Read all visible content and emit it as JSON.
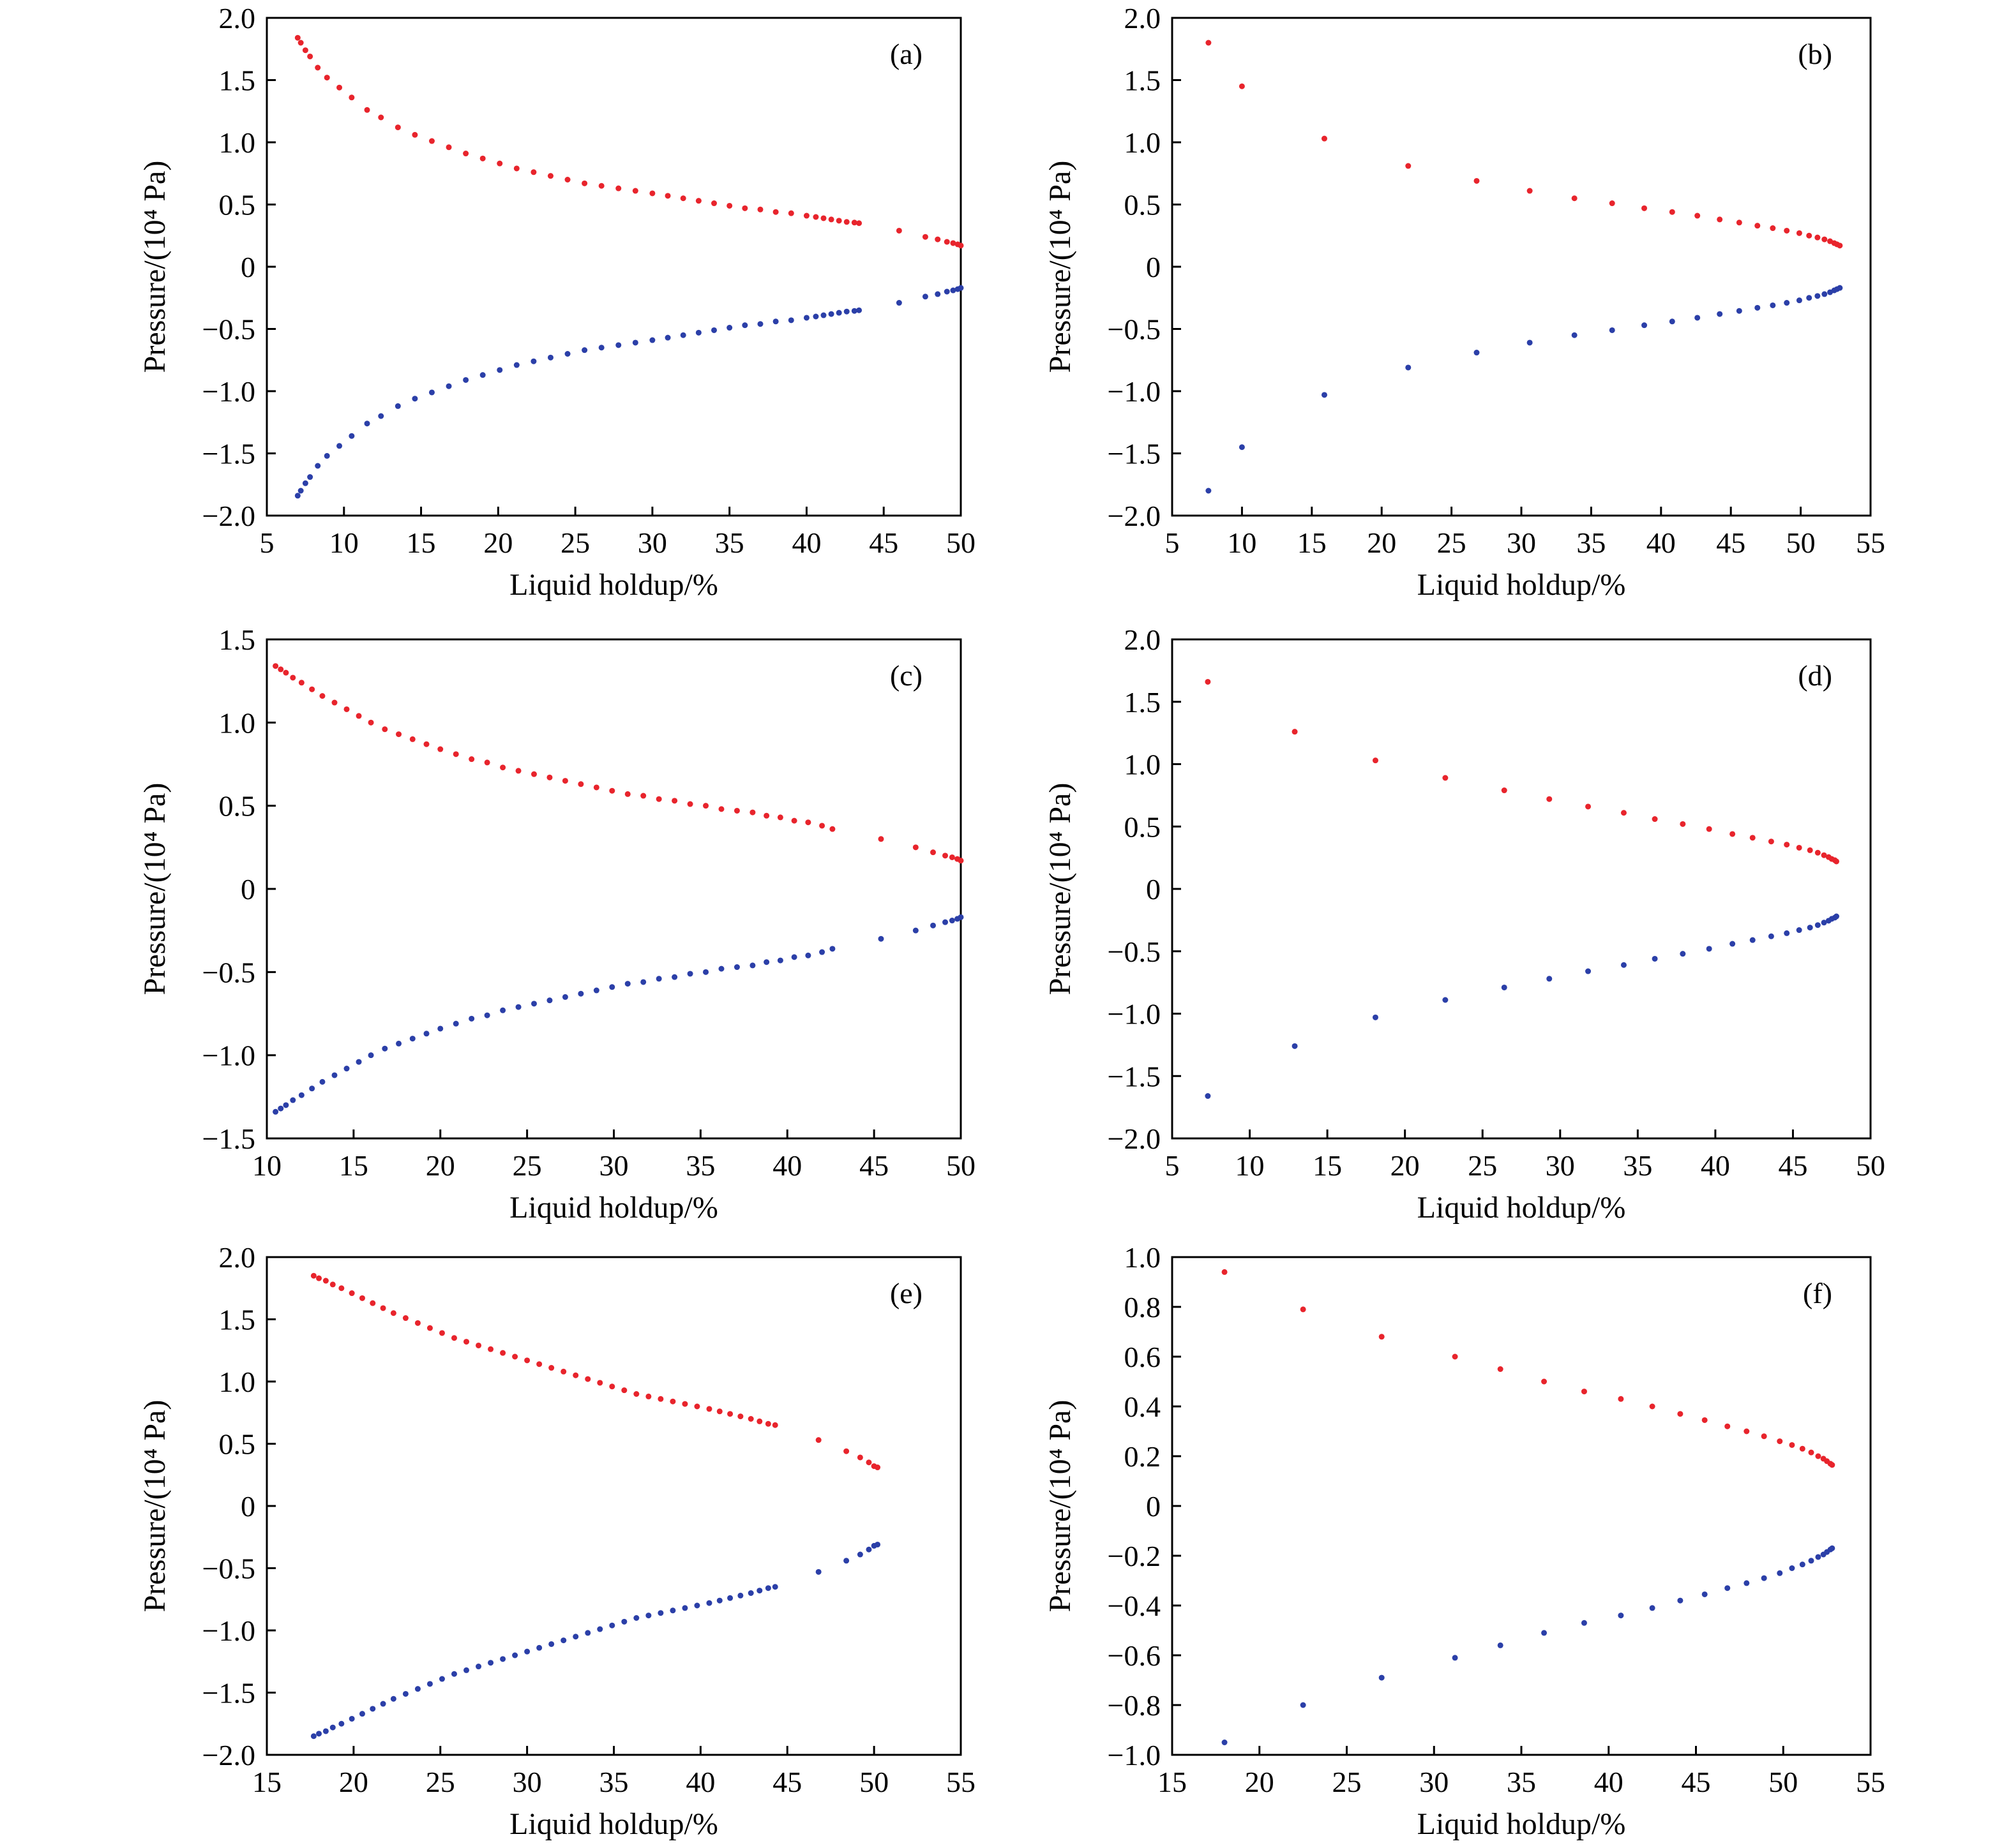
{
  "colors": {
    "upper_series": "#e8242c",
    "lower_series": "#2b3fa8"
  },
  "chart_data": [
    {
      "type": "scatter",
      "panel": "(a)",
      "xlabel": "Liquid holdup/%",
      "ylabel": "Pressure/(10⁴ Pa)",
      "xlim": [
        5,
        50
      ],
      "ylim": [
        -2.0,
        2.0
      ],
      "xticks": [
        "5",
        "10",
        "15",
        "20",
        "25",
        "30",
        "35",
        "40",
        "45",
        "50"
      ],
      "yticks": [
        "2.0",
        "1.5",
        "1.0",
        "0.5",
        "0",
        "−0.5",
        "−1.0",
        "−1.5",
        "−2.0"
      ],
      "x": [
        7.0,
        7.2,
        7.5,
        7.8,
        8.3,
        8.9,
        9.7,
        10.5,
        11.5,
        12.4,
        13.5,
        14.6,
        15.7,
        16.8,
        17.9,
        19.0,
        20.1,
        21.2,
        22.3,
        23.4,
        24.5,
        25.6,
        26.7,
        27.8,
        28.9,
        30.0,
        31.0,
        32.0,
        33.0,
        34.0,
        35.0,
        36.0,
        37.0,
        38.0,
        39.0,
        40.0,
        40.6,
        41.1,
        41.6,
        42.1,
        42.6,
        43.1,
        43.4,
        46.0,
        47.7,
        48.5,
        49.1,
        49.5,
        49.8,
        50.0
      ],
      "series": [
        {
          "values": [
            1.84,
            1.8,
            1.74,
            1.69,
            1.6,
            1.52,
            1.44,
            1.36,
            1.26,
            1.2,
            1.12,
            1.06,
            1.01,
            0.96,
            0.91,
            0.87,
            0.83,
            0.79,
            0.76,
            0.73,
            0.7,
            0.67,
            0.65,
            0.63,
            0.61,
            0.59,
            0.57,
            0.55,
            0.53,
            0.51,
            0.49,
            0.47,
            0.46,
            0.44,
            0.43,
            0.41,
            0.4,
            0.39,
            0.38,
            0.37,
            0.36,
            0.355,
            0.35,
            0.29,
            0.24,
            0.22,
            0.2,
            0.19,
            0.18,
            0.17
          ]
        },
        {
          "values": [
            -1.84,
            -1.8,
            -1.74,
            -1.69,
            -1.6,
            -1.52,
            -1.44,
            -1.36,
            -1.26,
            -1.2,
            -1.12,
            -1.06,
            -1.01,
            -0.96,
            -0.91,
            -0.87,
            -0.83,
            -0.79,
            -0.76,
            -0.73,
            -0.7,
            -0.67,
            -0.65,
            -0.63,
            -0.61,
            -0.59,
            -0.57,
            -0.55,
            -0.53,
            -0.51,
            -0.49,
            -0.47,
            -0.46,
            -0.44,
            -0.43,
            -0.41,
            -0.4,
            -0.39,
            -0.38,
            -0.37,
            -0.36,
            -0.355,
            -0.35,
            -0.29,
            -0.24,
            -0.22,
            -0.2,
            -0.19,
            -0.18,
            -0.17
          ]
        }
      ]
    },
    {
      "type": "scatter",
      "panel": "(b)",
      "xlabel": "Liquid holdup/%",
      "ylabel": "Pressure/(10⁴ Pa)",
      "xlim": [
        5,
        55
      ],
      "ylim": [
        -2.0,
        2.0
      ],
      "xticks": [
        "5",
        "10",
        "15",
        "20",
        "25",
        "30",
        "35",
        "40",
        "45",
        "50",
        "55"
      ],
      "yticks": [
        "2.0",
        "1.5",
        "1.0",
        "0.5",
        "0",
        "−0.5",
        "−1.0",
        "−1.5",
        "−2.0"
      ],
      "x": [
        7.6,
        10.0,
        15.9,
        21.9,
        26.8,
        30.6,
        33.8,
        36.5,
        38.8,
        40.8,
        42.6,
        44.2,
        45.6,
        46.9,
        48.0,
        49.0,
        49.9,
        50.6,
        51.2,
        51.7,
        52.1,
        52.4,
        52.6,
        52.8
      ],
      "series": [
        {
          "values": [
            1.8,
            1.45,
            1.03,
            0.81,
            0.69,
            0.61,
            0.55,
            0.51,
            0.47,
            0.44,
            0.41,
            0.38,
            0.355,
            0.33,
            0.31,
            0.29,
            0.27,
            0.25,
            0.235,
            0.22,
            0.205,
            0.19,
            0.18,
            0.17
          ]
        },
        {
          "values": [
            -1.8,
            -1.45,
            -1.03,
            -0.81,
            -0.69,
            -0.61,
            -0.55,
            -0.51,
            -0.47,
            -0.44,
            -0.41,
            -0.38,
            -0.355,
            -0.33,
            -0.31,
            -0.29,
            -0.27,
            -0.25,
            -0.235,
            -0.22,
            -0.205,
            -0.19,
            -0.18,
            -0.17
          ]
        }
      ]
    },
    {
      "type": "scatter",
      "panel": "(c)",
      "xlabel": "Liquid holdup/%",
      "ylabel": "Pressure/(10⁴ Pa)",
      "xlim": [
        10,
        50
      ],
      "ylim": [
        -1.5,
        1.5
      ],
      "xticks": [
        "10",
        "15",
        "20",
        "25",
        "30",
        "35",
        "40",
        "45",
        "50"
      ],
      "yticks": [
        "1.5",
        "1.0",
        "0.5",
        "0",
        "−0.5",
        "−1.0",
        "−1.5"
      ],
      "x": [
        10.5,
        10.8,
        11.1,
        11.5,
        12.0,
        12.6,
        13.2,
        13.9,
        14.6,
        15.3,
        16.0,
        16.8,
        17.6,
        18.4,
        19.2,
        20.0,
        20.9,
        21.8,
        22.7,
        23.6,
        24.5,
        25.4,
        26.3,
        27.2,
        28.1,
        29.0,
        29.9,
        30.8,
        31.7,
        32.6,
        33.5,
        34.4,
        35.3,
        36.2,
        37.1,
        38.0,
        38.8,
        39.6,
        40.4,
        41.2,
        42.0,
        42.6,
        45.4,
        47.4,
        48.4,
        49.1,
        49.5,
        49.8,
        50.0
      ],
      "series": [
        {
          "values": [
            1.34,
            1.32,
            1.3,
            1.27,
            1.24,
            1.2,
            1.16,
            1.12,
            1.08,
            1.04,
            1.0,
            0.96,
            0.93,
            0.9,
            0.87,
            0.84,
            0.81,
            0.78,
            0.76,
            0.73,
            0.71,
            0.69,
            0.67,
            0.65,
            0.63,
            0.61,
            0.59,
            0.57,
            0.56,
            0.54,
            0.53,
            0.51,
            0.5,
            0.48,
            0.47,
            0.46,
            0.44,
            0.43,
            0.41,
            0.4,
            0.38,
            0.36,
            0.3,
            0.25,
            0.22,
            0.2,
            0.19,
            0.18,
            0.17
          ]
        },
        {
          "values": [
            -1.34,
            -1.32,
            -1.3,
            -1.27,
            -1.24,
            -1.2,
            -1.16,
            -1.12,
            -1.08,
            -1.04,
            -1.0,
            -0.96,
            -0.93,
            -0.9,
            -0.87,
            -0.84,
            -0.81,
            -0.78,
            -0.76,
            -0.73,
            -0.71,
            -0.69,
            -0.67,
            -0.65,
            -0.63,
            -0.61,
            -0.59,
            -0.57,
            -0.56,
            -0.54,
            -0.53,
            -0.51,
            -0.5,
            -0.48,
            -0.47,
            -0.46,
            -0.44,
            -0.43,
            -0.41,
            -0.4,
            -0.38,
            -0.36,
            -0.3,
            -0.25,
            -0.22,
            -0.2,
            -0.19,
            -0.18,
            -0.17
          ]
        }
      ]
    },
    {
      "type": "scatter",
      "panel": "(d)",
      "xlabel": "Liquid holdup/%",
      "ylabel": "Pressure/(10⁴ Pa)",
      "xlim": [
        5,
        50
      ],
      "ylim": [
        -2.0,
        2.0
      ],
      "xticks": [
        "5",
        "10",
        "15",
        "20",
        "25",
        "30",
        "35",
        "40",
        "45",
        "50"
      ],
      "yticks": [
        "2.0",
        "1.5",
        "1.0",
        "0.5",
        "0",
        "−0.5",
        "−1.0",
        "−1.5",
        "−2.0"
      ],
      "x": [
        7.3,
        12.9,
        18.1,
        22.6,
        26.4,
        29.3,
        31.8,
        34.1,
        36.1,
        37.9,
        39.6,
        41.1,
        42.4,
        43.6,
        44.6,
        45.4,
        46.1,
        46.6,
        47.0,
        47.3,
        47.5,
        47.7,
        47.8
      ],
      "series": [
        {
          "values": [
            1.66,
            1.26,
            1.03,
            0.89,
            0.79,
            0.72,
            0.66,
            0.61,
            0.56,
            0.52,
            0.48,
            0.44,
            0.41,
            0.38,
            0.355,
            0.33,
            0.31,
            0.29,
            0.27,
            0.255,
            0.24,
            0.23,
            0.22
          ]
        },
        {
          "values": [
            -1.66,
            -1.26,
            -1.03,
            -0.89,
            -0.79,
            -0.72,
            -0.66,
            -0.61,
            -0.56,
            -0.52,
            -0.48,
            -0.44,
            -0.41,
            -0.38,
            -0.355,
            -0.33,
            -0.31,
            -0.29,
            -0.27,
            -0.255,
            -0.24,
            -0.23,
            -0.22
          ]
        }
      ]
    },
    {
      "type": "scatter",
      "panel": "(e)",
      "xlabel": "Liquid holdup/%",
      "ylabel": "Pressure/(10⁴ Pa)",
      "xlim": [
        15,
        55
      ],
      "ylim": [
        -2.0,
        2.0
      ],
      "xticks": [
        "15",
        "20",
        "25",
        "30",
        "35",
        "40",
        "45",
        "50",
        "55"
      ],
      "yticks": [
        "2.0",
        "1.5",
        "1.0",
        "0.5",
        "0",
        "−0.5",
        "−1.0",
        "−1.5",
        "−2.0"
      ],
      "x": [
        17.7,
        18.0,
        18.4,
        18.8,
        19.3,
        19.9,
        20.5,
        21.1,
        21.7,
        22.3,
        23.0,
        23.7,
        24.4,
        25.1,
        25.8,
        26.5,
        27.2,
        27.9,
        28.6,
        29.3,
        30.0,
        30.7,
        31.4,
        32.1,
        32.8,
        33.5,
        34.2,
        34.9,
        35.6,
        36.3,
        37.0,
        37.7,
        38.4,
        39.1,
        39.8,
        40.5,
        41.1,
        41.7,
        42.3,
        42.9,
        43.4,
        43.9,
        44.3,
        46.8,
        48.4,
        49.2,
        49.7,
        50.0,
        50.2
      ],
      "series": [
        {
          "values": [
            1.85,
            1.83,
            1.81,
            1.78,
            1.75,
            1.71,
            1.67,
            1.63,
            1.59,
            1.55,
            1.51,
            1.47,
            1.43,
            1.39,
            1.35,
            1.32,
            1.29,
            1.26,
            1.23,
            1.2,
            1.17,
            1.14,
            1.11,
            1.08,
            1.05,
            1.02,
            0.99,
            0.96,
            0.93,
            0.9,
            0.88,
            0.86,
            0.84,
            0.82,
            0.8,
            0.78,
            0.76,
            0.74,
            0.72,
            0.7,
            0.68,
            0.66,
            0.65,
            0.53,
            0.44,
            0.39,
            0.35,
            0.32,
            0.31
          ]
        },
        {
          "values": [
            -1.85,
            -1.83,
            -1.81,
            -1.78,
            -1.75,
            -1.71,
            -1.67,
            -1.63,
            -1.59,
            -1.55,
            -1.51,
            -1.47,
            -1.43,
            -1.39,
            -1.35,
            -1.32,
            -1.29,
            -1.26,
            -1.23,
            -1.2,
            -1.17,
            -1.14,
            -1.11,
            -1.08,
            -1.05,
            -1.02,
            -0.99,
            -0.96,
            -0.93,
            -0.9,
            -0.88,
            -0.86,
            -0.84,
            -0.82,
            -0.8,
            -0.78,
            -0.76,
            -0.74,
            -0.72,
            -0.7,
            -0.68,
            -0.66,
            -0.65,
            -0.53,
            -0.44,
            -0.39,
            -0.35,
            -0.32,
            -0.31
          ]
        }
      ]
    },
    {
      "type": "scatter",
      "panel": "(f)",
      "xlabel": "Liquid holdup/%",
      "ylabel": "Pressure/(10⁴ Pa)",
      "xlim": [
        15,
        55
      ],
      "ylim": [
        -1.0,
        1.0
      ],
      "xticks": [
        "15",
        "20",
        "25",
        "30",
        "35",
        "40",
        "45",
        "50",
        "55"
      ],
      "yticks": [
        "1.0",
        "0.8",
        "0.6",
        "0.4",
        "0.2",
        "0",
        "−0.2",
        "−0.4",
        "−0.6",
        "−0.8",
        "−1.0"
      ],
      "x": [
        18.0,
        22.5,
        27.0,
        31.2,
        33.8,
        36.3,
        38.6,
        40.7,
        42.5,
        44.1,
        45.5,
        46.8,
        47.9,
        48.9,
        49.8,
        50.5,
        51.1,
        51.6,
        52.0,
        52.3,
        52.5,
        52.7,
        52.8
      ],
      "series": [
        {
          "values": [
            0.94,
            0.79,
            0.68,
            0.6,
            0.55,
            0.5,
            0.46,
            0.43,
            0.4,
            0.37,
            0.345,
            0.32,
            0.3,
            0.28,
            0.26,
            0.245,
            0.23,
            0.215,
            0.2,
            0.19,
            0.18,
            0.17,
            0.165
          ]
        },
        {
          "values": [
            -0.95,
            -0.8,
            -0.69,
            -0.61,
            -0.56,
            -0.51,
            -0.47,
            -0.44,
            -0.41,
            -0.38,
            -0.355,
            -0.33,
            -0.31,
            -0.29,
            -0.27,
            -0.25,
            -0.235,
            -0.22,
            -0.205,
            -0.195,
            -0.185,
            -0.175,
            -0.17
          ]
        }
      ]
    }
  ]
}
